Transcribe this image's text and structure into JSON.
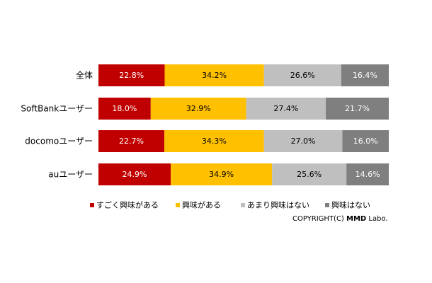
{
  "chart_data": {
    "type": "bar",
    "orientation": "horizontal",
    "stacked": true,
    "percent_stacked": true,
    "categories": [
      "全体",
      "SoftBankユーザー",
      "docomoユーザー",
      "auユーザー"
    ],
    "series": [
      {
        "name": "すごく興味がある",
        "color": "#c00000",
        "label_color": "#ffffff",
        "values": [
          22.8,
          18.0,
          22.7,
          24.9
        ]
      },
      {
        "name": "興味がある",
        "color": "#ffc000",
        "label_color": "#000000",
        "values": [
          34.2,
          32.9,
          34.3,
          34.9
        ]
      },
      {
        "name": "あまり興味はない",
        "color": "#bfbfbf",
        "label_color": "#000000",
        "values": [
          26.6,
          27.4,
          27.0,
          25.6
        ]
      },
      {
        "name": "興味はない",
        "color": "#7f7f7f",
        "label_color": "#ffffff",
        "values": [
          16.4,
          21.7,
          16.0,
          14.6
        ]
      }
    ],
    "value_format": "percent_1dp",
    "xlim": [
      0,
      100
    ],
    "grid": false,
    "legend_position": "bottom"
  },
  "copyright": {
    "prefix": "COPYRIGHT(C) ",
    "brand": "MMD",
    "suffix": " Labo."
  }
}
